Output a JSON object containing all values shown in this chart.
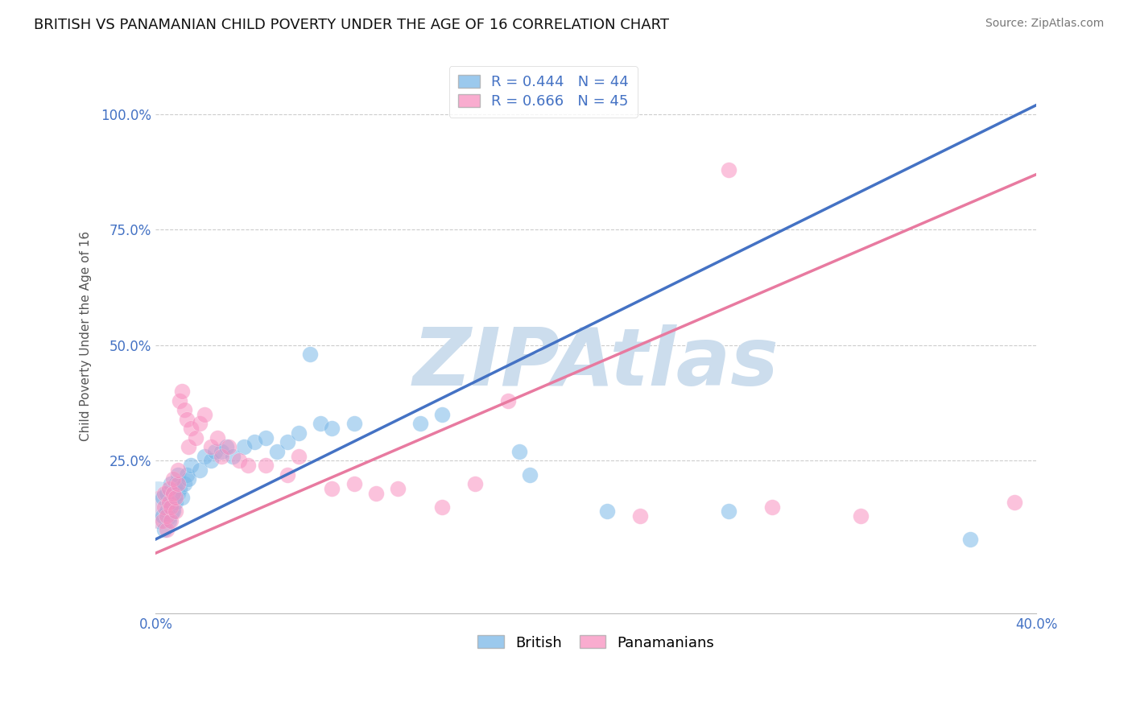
{
  "title": "BRITISH VS PANAMANIAN CHILD POVERTY UNDER THE AGE OF 16 CORRELATION CHART",
  "source": "Source: ZipAtlas.com",
  "ylabel": "Child Poverty Under the Age of 16",
  "xlim": [
    0.0,
    0.4
  ],
  "ylim": [
    -0.08,
    1.12
  ],
  "xticks": [
    0.0,
    0.05,
    0.1,
    0.15,
    0.2,
    0.25,
    0.3,
    0.35,
    0.4
  ],
  "xticklabels": [
    "0.0%",
    "",
    "",
    "",
    "",
    "",
    "",
    "",
    "40.0%"
  ],
  "yticks": [
    0.0,
    0.25,
    0.5,
    0.75,
    1.0
  ],
  "yticklabels": [
    "",
    "25.0%",
    "50.0%",
    "75.0%",
    "100.0%"
  ],
  "british_R": 0.444,
  "british_N": 44,
  "panamanian_R": 0.666,
  "panamanian_N": 45,
  "british_color": "#7ab8e8",
  "panamanian_color": "#f890c0",
  "british_scatter": [
    [
      0.003,
      0.17
    ],
    [
      0.003,
      0.13
    ],
    [
      0.004,
      0.1
    ],
    [
      0.005,
      0.14
    ],
    [
      0.005,
      0.18
    ],
    [
      0.006,
      0.12
    ],
    [
      0.007,
      0.16
    ],
    [
      0.007,
      0.2
    ],
    [
      0.008,
      0.14
    ],
    [
      0.008,
      0.18
    ],
    [
      0.009,
      0.16
    ],
    [
      0.009,
      0.2
    ],
    [
      0.01,
      0.18
    ],
    [
      0.01,
      0.22
    ],
    [
      0.011,
      0.19
    ],
    [
      0.012,
      0.17
    ],
    [
      0.013,
      0.2
    ],
    [
      0.014,
      0.22
    ],
    [
      0.015,
      0.21
    ],
    [
      0.016,
      0.24
    ],
    [
      0.02,
      0.23
    ],
    [
      0.022,
      0.26
    ],
    [
      0.025,
      0.25
    ],
    [
      0.027,
      0.27
    ],
    [
      0.03,
      0.27
    ],
    [
      0.032,
      0.28
    ],
    [
      0.035,
      0.26
    ],
    [
      0.04,
      0.28
    ],
    [
      0.045,
      0.29
    ],
    [
      0.05,
      0.3
    ],
    [
      0.055,
      0.27
    ],
    [
      0.06,
      0.29
    ],
    [
      0.065,
      0.31
    ],
    [
      0.07,
      0.48
    ],
    [
      0.075,
      0.33
    ],
    [
      0.08,
      0.32
    ],
    [
      0.09,
      0.33
    ],
    [
      0.12,
      0.33
    ],
    [
      0.13,
      0.35
    ],
    [
      0.165,
      0.27
    ],
    [
      0.17,
      0.22
    ],
    [
      0.205,
      0.14
    ],
    [
      0.26,
      0.14
    ],
    [
      0.37,
      0.08
    ]
  ],
  "panamanian_scatter": [
    [
      0.003,
      0.12
    ],
    [
      0.004,
      0.15
    ],
    [
      0.004,
      0.18
    ],
    [
      0.005,
      0.1
    ],
    [
      0.005,
      0.13
    ],
    [
      0.006,
      0.16
    ],
    [
      0.006,
      0.19
    ],
    [
      0.007,
      0.12
    ],
    [
      0.007,
      0.15
    ],
    [
      0.008,
      0.18
    ],
    [
      0.008,
      0.21
    ],
    [
      0.009,
      0.14
    ],
    [
      0.009,
      0.17
    ],
    [
      0.01,
      0.2
    ],
    [
      0.01,
      0.23
    ],
    [
      0.011,
      0.38
    ],
    [
      0.012,
      0.4
    ],
    [
      0.013,
      0.36
    ],
    [
      0.014,
      0.34
    ],
    [
      0.015,
      0.28
    ],
    [
      0.016,
      0.32
    ],
    [
      0.018,
      0.3
    ],
    [
      0.02,
      0.33
    ],
    [
      0.022,
      0.35
    ],
    [
      0.025,
      0.28
    ],
    [
      0.028,
      0.3
    ],
    [
      0.03,
      0.26
    ],
    [
      0.033,
      0.28
    ],
    [
      0.038,
      0.25
    ],
    [
      0.042,
      0.24
    ],
    [
      0.05,
      0.24
    ],
    [
      0.06,
      0.22
    ],
    [
      0.065,
      0.26
    ],
    [
      0.08,
      0.19
    ],
    [
      0.09,
      0.2
    ],
    [
      0.1,
      0.18
    ],
    [
      0.11,
      0.19
    ],
    [
      0.13,
      0.15
    ],
    [
      0.145,
      0.2
    ],
    [
      0.16,
      0.38
    ],
    [
      0.22,
      0.13
    ],
    [
      0.26,
      0.88
    ],
    [
      0.28,
      0.15
    ],
    [
      0.32,
      0.13
    ],
    [
      0.39,
      0.16
    ]
  ],
  "british_reg": {
    "slope": 2.35,
    "intercept": 0.08
  },
  "panamanian_reg": {
    "slope": 2.05,
    "intercept": 0.05
  },
  "watermark": "ZIPAtlas",
  "watermark_color": "#ccdded",
  "grid_color": "#cccccc",
  "title_color": "#111111",
  "regression_blue_color": "#4472c4",
  "regression_pink_color": "#e87aa0",
  "title_fontsize": 13,
  "source_fontsize": 10,
  "legend_fontsize": 13,
  "axis_label_fontsize": 11,
  "tick_fontsize": 12
}
